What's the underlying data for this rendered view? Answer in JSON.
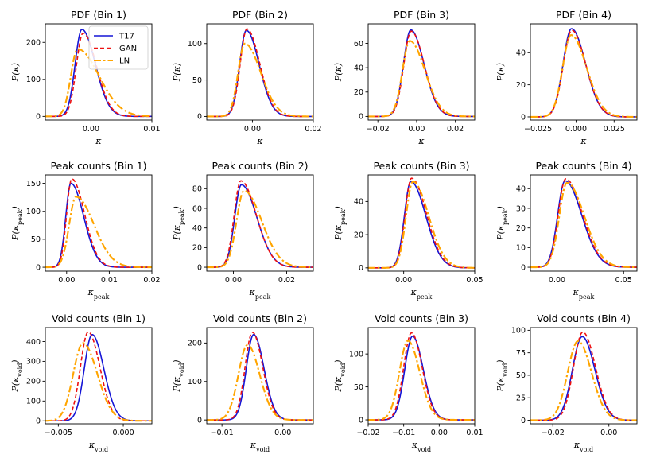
{
  "colors": {
    "T17": "#1515d6",
    "GAN": "#ee1111",
    "LN": "#ffa500"
  },
  "legend": {
    "location": "top-right of first panel",
    "entries": [
      "T17",
      "GAN",
      "LN"
    ]
  },
  "chart_data": [
    {
      "type": "line",
      "title": "PDF (Bin 1)",
      "xlabel": "κ",
      "ylabel": "P(κ)",
      "xlim": [
        -0.0075,
        0.01
      ],
      "ylim": [
        -10,
        250
      ],
      "xticks": [
        0.0,
        0.01
      ],
      "xtick_labels": [
        "0.00",
        "0.01"
      ],
      "yticks": [
        0,
        100,
        200
      ],
      "series": [
        {
          "name": "T17",
          "peak_x": -0.0015,
          "peak": 235,
          "sl": 0.0011,
          "sr": 0.0022
        },
        {
          "name": "GAN",
          "peak_x": -0.0013,
          "peak": 225,
          "sl": 0.0011,
          "sr": 0.0022
        },
        {
          "name": "LN",
          "peak_x": -0.0022,
          "peak": 182,
          "sl": 0.0011,
          "sr": 0.0035
        }
      ]
    },
    {
      "type": "line",
      "title": "PDF (Bin 2)",
      "xlabel": "κ",
      "ylabel": "P(κ)",
      "xlim": [
        -0.015,
        0.02
      ],
      "ylim": [
        -5,
        127
      ],
      "xticks": [
        0.0,
        0.02
      ],
      "xtick_labels": [
        "0.00",
        "0.02"
      ],
      "yticks": [
        0,
        50,
        100
      ],
      "series": [
        {
          "name": "T17",
          "peak_x": -0.002,
          "peak": 118,
          "sl": 0.0022,
          "sr": 0.0042
        },
        {
          "name": "GAN",
          "peak_x": -0.0018,
          "peak": 120,
          "sl": 0.0022,
          "sr": 0.0042
        },
        {
          "name": "LN",
          "peak_x": -0.0025,
          "peak": 100,
          "sl": 0.0022,
          "sr": 0.0052
        }
      ]
    },
    {
      "type": "line",
      "title": "PDF (Bin 3)",
      "xlabel": "κ",
      "ylabel": "P(κ)",
      "xlim": [
        -0.025,
        0.03
      ],
      "ylim": [
        -3,
        76
      ],
      "xticks": [
        -0.02,
        0.0,
        0.02
      ],
      "xtick_labels": [
        "−0.02",
        "0.00",
        "0.02"
      ],
      "yticks": [
        0,
        20,
        40,
        60
      ],
      "series": [
        {
          "name": "T17",
          "peak_x": -0.003,
          "peak": 71,
          "sl": 0.0038,
          "sr": 0.0068
        },
        {
          "name": "GAN",
          "peak_x": -0.0028,
          "peak": 70,
          "sl": 0.0038,
          "sr": 0.0068
        },
        {
          "name": "LN",
          "peak_x": -0.0035,
          "peak": 62,
          "sl": 0.0038,
          "sr": 0.0078
        }
      ]
    },
    {
      "type": "line",
      "title": "PDF (Bin 4)",
      "xlabel": "κ",
      "ylabel": "P(κ)",
      "xlim": [
        -0.03,
        0.04
      ],
      "ylim": [
        -2,
        58
      ],
      "xticks": [
        -0.025,
        0.0,
        0.025
      ],
      "xtick_labels": [
        "−0.025",
        "0.000",
        "0.025"
      ],
      "yticks": [
        0,
        20,
        40
      ],
      "series": [
        {
          "name": "T17",
          "peak_x": -0.003,
          "peak": 55,
          "sl": 0.0055,
          "sr": 0.0092
        },
        {
          "name": "GAN",
          "peak_x": -0.0028,
          "peak": 54,
          "sl": 0.0055,
          "sr": 0.0092
        },
        {
          "name": "LN",
          "peak_x": -0.0033,
          "peak": 51,
          "sl": 0.0055,
          "sr": 0.0102
        }
      ]
    },
    {
      "type": "line",
      "title": "Peak counts (Bin 1)",
      "xlabel": "κpeak",
      "ylabel": "P(κpeak)",
      "xlim": [
        -0.005,
        0.02
      ],
      "ylim": [
        -7,
        165
      ],
      "xticks": [
        0.0,
        0.01,
        0.02
      ],
      "xtick_labels": [
        "0.00",
        "0.01",
        "0.02"
      ],
      "yticks": [
        0,
        50,
        100,
        150
      ],
      "series": [
        {
          "name": "T17",
          "peak_x": 0.001,
          "peak": 150,
          "sl": 0.0012,
          "sr": 0.003
        },
        {
          "name": "GAN",
          "peak_x": 0.0012,
          "peak": 158,
          "sl": 0.0012,
          "sr": 0.003
        },
        {
          "name": "LN",
          "peak_x": 0.0022,
          "peak": 126,
          "sl": 0.0016,
          "sr": 0.0042
        }
      ]
    },
    {
      "type": "line",
      "title": "Peak counts (Bin 2)",
      "xlabel": "κpeak",
      "ylabel": "P(κpeak)",
      "xlim": [
        -0.01,
        0.03
      ],
      "ylim": [
        -4,
        94
      ],
      "xticks": [
        0.0,
        0.02
      ],
      "xtick_labels": [
        "0.00",
        "0.02"
      ],
      "yticks": [
        0,
        20,
        40,
        60,
        80
      ],
      "series": [
        {
          "name": "T17",
          "peak_x": 0.003,
          "peak": 84,
          "sl": 0.0025,
          "sr": 0.0058
        },
        {
          "name": "GAN",
          "peak_x": 0.0028,
          "peak": 88,
          "sl": 0.0025,
          "sr": 0.0058
        },
        {
          "name": "LN",
          "peak_x": 0.004,
          "peak": 78,
          "sl": 0.0028,
          "sr": 0.0066
        }
      ]
    },
    {
      "type": "line",
      "title": "Peak counts (Bin 3)",
      "xlabel": "κpeak",
      "ylabel": "P(κpeak)",
      "xlim": [
        -0.025,
        0.05
      ],
      "ylim": [
        -2,
        56
      ],
      "xticks": [
        0.0,
        0.05
      ],
      "xtick_labels": [
        "0.00",
        "0.05"
      ],
      "yticks": [
        0,
        20,
        40
      ],
      "series": [
        {
          "name": "T17",
          "peak_x": 0.005,
          "peak": 52,
          "sl": 0.0045,
          "sr": 0.0105
        },
        {
          "name": "GAN",
          "peak_x": 0.0055,
          "peak": 54,
          "sl": 0.0045,
          "sr": 0.0105
        },
        {
          "name": "LN",
          "peak_x": 0.0065,
          "peak": 52,
          "sl": 0.0048,
          "sr": 0.011
        }
      ]
    },
    {
      "type": "line",
      "title": "Peak counts (Bin 4)",
      "xlabel": "κpeak",
      "ylabel": "P(κpeak)",
      "xlim": [
        -0.02,
        0.06
      ],
      "ylim": [
        -2,
        47
      ],
      "xticks": [
        0.0,
        0.05
      ],
      "xtick_labels": [
        "0.00",
        "0.05"
      ],
      "yticks": [
        0,
        10,
        20,
        30,
        40
      ],
      "series": [
        {
          "name": "T17",
          "peak_x": 0.006,
          "peak": 44,
          "sl": 0.0055,
          "sr": 0.0125
        },
        {
          "name": "GAN",
          "peak_x": 0.0065,
          "peak": 45,
          "sl": 0.0055,
          "sr": 0.0125
        },
        {
          "name": "LN",
          "peak_x": 0.0075,
          "peak": 43,
          "sl": 0.0058,
          "sr": 0.013
        }
      ]
    },
    {
      "type": "line",
      "title": "Void counts (Bin 1)",
      "xlabel": "κvoid",
      "ylabel": "P(κvoid)",
      "xlim": [
        -0.006,
        0.0022
      ],
      "ylim": [
        -15,
        470
      ],
      "xticks": [
        -0.005,
        0.0
      ],
      "xtick_labels": [
        "−0.005",
        "0.000"
      ],
      "yticks": [
        0,
        100,
        200,
        300,
        400
      ],
      "series": [
        {
          "name": "T17",
          "peak_x": -0.0024,
          "peak": 435,
          "sl": 0.0006,
          "sr": 0.0009
        },
        {
          "name": "GAN",
          "peak_x": -0.0027,
          "peak": 448,
          "sl": 0.0006,
          "sr": 0.0009
        },
        {
          "name": "LN",
          "peak_x": -0.0031,
          "peak": 392,
          "sl": 0.00075,
          "sr": 0.0011
        }
      ]
    },
    {
      "type": "line",
      "title": "Void counts (Bin 2)",
      "xlabel": "κvoid",
      "ylabel": "P(κvoid)",
      "xlim": [
        -0.0125,
        0.005
      ],
      "ylim": [
        -10,
        240
      ],
      "xticks": [
        -0.01,
        0.0
      ],
      "xtick_labels": [
        "−0.01",
        "0.00"
      ],
      "yticks": [
        0,
        100,
        200
      ],
      "series": [
        {
          "name": "T17",
          "peak_x": -0.0048,
          "peak": 222,
          "sl": 0.0012,
          "sr": 0.0017
        },
        {
          "name": "GAN",
          "peak_x": -0.005,
          "peak": 228,
          "sl": 0.0012,
          "sr": 0.0017
        },
        {
          "name": "LN",
          "peak_x": -0.0058,
          "peak": 195,
          "sl": 0.0015,
          "sr": 0.002
        }
      ]
    },
    {
      "type": "line",
      "title": "Void counts (Bin 3)",
      "xlabel": "κvoid",
      "ylabel": "P(κvoid)",
      "xlim": [
        -0.02,
        0.01
      ],
      "ylim": [
        -6,
        140
      ],
      "xticks": [
        -0.02,
        -0.01,
        0.0,
        0.01
      ],
      "xtick_labels": [
        "−0.02",
        "−0.01",
        "0.00",
        "0.01"
      ],
      "yticks": [
        0,
        50,
        100
      ],
      "series": [
        {
          "name": "T17",
          "peak_x": -0.0075,
          "peak": 127,
          "sl": 0.0022,
          "sr": 0.003
        },
        {
          "name": "GAN",
          "peak_x": -0.0078,
          "peak": 132,
          "sl": 0.0022,
          "sr": 0.003
        },
        {
          "name": "LN",
          "peak_x": -0.0088,
          "peak": 120,
          "sl": 0.0024,
          "sr": 0.0033
        }
      ]
    },
    {
      "type": "line",
      "title": "Void counts (Bin 4)",
      "xlabel": "κvoid",
      "ylabel": "P(κvoid)",
      "xlim": [
        -0.028,
        0.01
      ],
      "ylim": [
        -4,
        103
      ],
      "xticks": [
        -0.02,
        0.0
      ],
      "xtick_labels": [
        "−0.02",
        "0.00"
      ],
      "yticks": [
        0,
        25,
        50,
        75,
        100
      ],
      "series": [
        {
          "name": "T17",
          "peak_x": -0.0095,
          "peak": 93,
          "sl": 0.0035,
          "sr": 0.0045
        },
        {
          "name": "GAN",
          "peak_x": -0.0093,
          "peak": 98,
          "sl": 0.0033,
          "sr": 0.0045
        },
        {
          "name": "LN",
          "peak_x": -0.011,
          "peak": 88,
          "sl": 0.0037,
          "sr": 0.0048
        }
      ]
    }
  ]
}
